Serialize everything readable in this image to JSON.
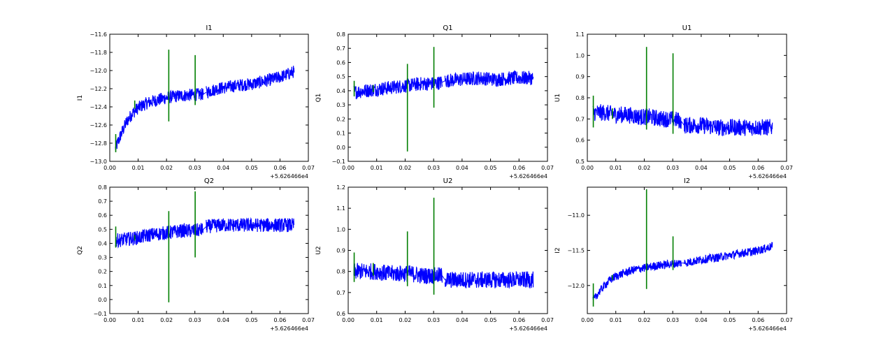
{
  "chart_data": [
    {
      "type": "line",
      "title": "I1",
      "ylabel": "I1",
      "xlim": [
        0.0,
        0.07
      ],
      "ylim": [
        -13.0,
        -11.6
      ],
      "x_offset_label": "+5.626466e4",
      "xticks": [
        "0.00",
        "0.01",
        "0.02",
        "0.03",
        "0.04",
        "0.05",
        "0.06",
        "0.07"
      ],
      "yticks": [
        "-13.0",
        "-12.8",
        "-12.6",
        "-12.4",
        "-12.2",
        "-12.0",
        "-11.8",
        "-11.6"
      ],
      "series": [
        {
          "color": "#0000ff",
          "segments": [
            {
              "x": [
                0.002,
                0.004,
                0.006,
                0.008,
                0.01,
                0.013,
                0.016,
                0.02,
                0.024,
                0.028,
                0.033
              ],
              "y": [
                -12.86,
                -12.7,
                -12.56,
                -12.47,
                -12.41,
                -12.36,
                -12.33,
                -12.3,
                -12.28,
                -12.27,
                -12.26
              ],
              "band": 0.07
            },
            {
              "x": [
                0.034,
                0.038,
                0.042,
                0.046,
                0.05,
                0.054,
                0.058,
                0.062,
                0.065
              ],
              "y": [
                -12.24,
                -12.2,
                -12.18,
                -12.16,
                -12.15,
                -12.12,
                -12.09,
                -12.05,
                -12.01
              ],
              "band": 0.07
            }
          ]
        }
      ],
      "spikes": [
        {
          "x": 0.0021,
          "y": [
            -12.9,
            -12.7
          ]
        },
        {
          "x": 0.0088,
          "y": [
            -12.42,
            -12.33
          ]
        },
        {
          "x": 0.0208,
          "y": [
            -12.56,
            -11.77
          ]
        },
        {
          "x": 0.0301,
          "y": [
            -12.38,
            -11.83
          ]
        }
      ]
    },
    {
      "type": "line",
      "title": "Q1",
      "ylabel": "Q1",
      "xlim": [
        0.0,
        0.07
      ],
      "ylim": [
        -0.1,
        0.8
      ],
      "x_offset_label": "+5.626466e4",
      "xticks": [
        "0.00",
        "0.01",
        "0.02",
        "0.03",
        "0.04",
        "0.05",
        "0.06",
        "0.07"
      ],
      "yticks": [
        "-0.1",
        "0.0",
        "0.1",
        "0.2",
        "0.3",
        "0.4",
        "0.5",
        "0.6",
        "0.7",
        "0.8"
      ],
      "series": [
        {
          "color": "#0000ff",
          "segments": [
            {
              "x": [
                0.002,
                0.006,
                0.01,
                0.014,
                0.018,
                0.022,
                0.026,
                0.03,
                0.033
              ],
              "y": [
                0.39,
                0.4,
                0.41,
                0.42,
                0.43,
                0.44,
                0.45,
                0.45,
                0.46
              ],
              "band": 0.05
            },
            {
              "x": [
                0.034,
                0.04,
                0.046,
                0.052,
                0.058,
                0.065
              ],
              "y": [
                0.47,
                0.48,
                0.49,
                0.48,
                0.49,
                0.49
              ],
              "band": 0.05
            }
          ]
        }
      ],
      "spikes": [
        {
          "x": 0.0021,
          "y": [
            0.36,
            0.47
          ]
        },
        {
          "x": 0.0088,
          "y": [
            0.39,
            0.44
          ]
        },
        {
          "x": 0.0208,
          "y": [
            -0.03,
            0.59
          ]
        },
        {
          "x": 0.0301,
          "y": [
            0.28,
            0.71
          ]
        }
      ]
    },
    {
      "type": "line",
      "title": "U1",
      "ylabel": "U1",
      "xlim": [
        0.0,
        0.07
      ],
      "ylim": [
        0.5,
        1.1
      ],
      "x_offset_label": "+5.626466e4",
      "xticks": [
        "0.00",
        "0.01",
        "0.02",
        "0.03",
        "0.04",
        "0.05",
        "0.06",
        "0.07"
      ],
      "yticks": [
        "0.5",
        "0.6",
        "0.7",
        "0.8",
        "0.9",
        "1.0",
        "1.1"
      ],
      "series": [
        {
          "color": "#0000ff",
          "segments": [
            {
              "x": [
                0.002,
                0.006,
                0.01,
                0.014,
                0.018,
                0.022,
                0.026,
                0.03,
                0.033
              ],
              "y": [
                0.73,
                0.73,
                0.72,
                0.72,
                0.71,
                0.71,
                0.7,
                0.7,
                0.69
              ],
              "band": 0.04
            },
            {
              "x": [
                0.034,
                0.04,
                0.046,
                0.052,
                0.058,
                0.065
              ],
              "y": [
                0.67,
                0.67,
                0.66,
                0.66,
                0.66,
                0.66
              ],
              "band": 0.04
            }
          ]
        }
      ],
      "spikes": [
        {
          "x": 0.0021,
          "y": [
            0.66,
            0.81
          ]
        },
        {
          "x": 0.0088,
          "y": [
            0.7,
            0.75
          ]
        },
        {
          "x": 0.0208,
          "y": [
            0.65,
            1.04
          ]
        },
        {
          "x": 0.0301,
          "y": [
            0.63,
            1.01
          ]
        }
      ]
    },
    {
      "type": "line",
      "title": "Q2",
      "ylabel": "Q2",
      "xlim": [
        0.0,
        0.07
      ],
      "ylim": [
        -0.1,
        0.8
      ],
      "x_offset_label": "+5.626466e4",
      "xticks": [
        "0.00",
        "0.01",
        "0.02",
        "0.03",
        "0.04",
        "0.05",
        "0.06",
        "0.07"
      ],
      "yticks": [
        "-0.1",
        "0.0",
        "0.1",
        "0.2",
        "0.3",
        "0.4",
        "0.5",
        "0.6",
        "0.7",
        "0.8"
      ],
      "series": [
        {
          "color": "#0000ff",
          "segments": [
            {
              "x": [
                0.002,
                0.006,
                0.01,
                0.014,
                0.018,
                0.022,
                0.026,
                0.03,
                0.033
              ],
              "y": [
                0.42,
                0.43,
                0.44,
                0.46,
                0.47,
                0.48,
                0.49,
                0.49,
                0.5
              ],
              "band": 0.05
            },
            {
              "x": [
                0.034,
                0.04,
                0.046,
                0.052,
                0.058,
                0.065
              ],
              "y": [
                0.52,
                0.53,
                0.53,
                0.53,
                0.53,
                0.53
              ],
              "band": 0.05
            }
          ]
        }
      ],
      "spikes": [
        {
          "x": 0.0021,
          "y": [
            0.37,
            0.52
          ]
        },
        {
          "x": 0.0088,
          "y": [
            0.42,
            0.46
          ]
        },
        {
          "x": 0.0208,
          "y": [
            -0.02,
            0.63
          ]
        },
        {
          "x": 0.0301,
          "y": [
            0.3,
            0.77
          ]
        }
      ]
    },
    {
      "type": "line",
      "title": "U2",
      "ylabel": "U2",
      "xlim": [
        0.0,
        0.07
      ],
      "ylim": [
        0.6,
        1.2
      ],
      "x_offset_label": "+5.626466e4",
      "xticks": [
        "0.00",
        "0.01",
        "0.02",
        "0.03",
        "0.04",
        "0.05",
        "0.06",
        "0.07"
      ],
      "yticks": [
        "0.6",
        "0.7",
        "0.8",
        "0.9",
        "1.0",
        "1.1",
        "1.2"
      ],
      "series": [
        {
          "color": "#0000ff",
          "segments": [
            {
              "x": [
                0.002,
                0.006,
                0.01,
                0.014,
                0.018,
                0.022,
                0.026,
                0.03,
                0.033
              ],
              "y": [
                0.8,
                0.8,
                0.8,
                0.79,
                0.79,
                0.79,
                0.78,
                0.78,
                0.78
              ],
              "band": 0.04
            },
            {
              "x": [
                0.034,
                0.04,
                0.046,
                0.052,
                0.058,
                0.065
              ],
              "y": [
                0.76,
                0.76,
                0.76,
                0.76,
                0.76,
                0.76
              ],
              "band": 0.04
            }
          ]
        }
      ],
      "spikes": [
        {
          "x": 0.0021,
          "y": [
            0.75,
            0.89
          ]
        },
        {
          "x": 0.0088,
          "y": [
            0.78,
            0.84
          ]
        },
        {
          "x": 0.0208,
          "y": [
            0.73,
            0.99
          ]
        },
        {
          "x": 0.0301,
          "y": [
            0.69,
            1.15
          ]
        }
      ]
    },
    {
      "type": "line",
      "title": "I2",
      "ylabel": "I2",
      "xlim": [
        0.0,
        0.07
      ],
      "ylim": [
        -12.4,
        -10.6
      ],
      "x_offset_label": "+5.626466e4",
      "xticks": [
        "0.00",
        "0.01",
        "0.02",
        "0.03",
        "0.04",
        "0.05",
        "0.06",
        "0.07"
      ],
      "yticks": [
        "-12.0",
        "-11.5",
        "-11.0"
      ],
      "ytick_values": [
        -12.0,
        -11.5,
        -11.0
      ],
      "series": [
        {
          "color": "#0000ff",
          "segments": [
            {
              "x": [
                0.002,
                0.004,
                0.006,
                0.008,
                0.01,
                0.013,
                0.016,
                0.02,
                0.024,
                0.028,
                0.033
              ],
              "y": [
                -12.22,
                -12.1,
                -12.0,
                -11.92,
                -11.87,
                -11.82,
                -11.78,
                -11.75,
                -11.72,
                -11.7,
                -11.68
              ],
              "band": 0.06
            },
            {
              "x": [
                0.034,
                0.038,
                0.042,
                0.046,
                0.05,
                0.054,
                0.058,
                0.062,
                0.065
              ],
              "y": [
                -11.68,
                -11.65,
                -11.62,
                -11.6,
                -11.57,
                -11.54,
                -11.52,
                -11.48,
                -11.44
              ],
              "band": 0.06
            }
          ]
        }
      ],
      "spikes": [
        {
          "x": 0.0021,
          "y": [
            -12.3,
            -11.97
          ]
        },
        {
          "x": 0.0088,
          "y": [
            -11.92,
            -11.85
          ]
        },
        {
          "x": 0.0208,
          "y": [
            -12.05,
            -10.63
          ]
        },
        {
          "x": 0.0301,
          "y": [
            -11.78,
            -11.3
          ]
        }
      ]
    }
  ],
  "colors": {
    "signal": "#0000ff",
    "spike": "#007f00",
    "axes": "#000000"
  }
}
